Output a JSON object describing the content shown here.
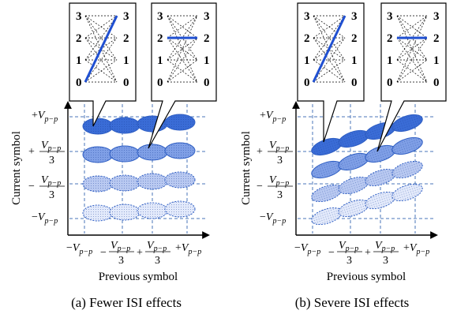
{
  "panels": [
    {
      "id": "a",
      "caption": "(a)  Fewer ISI effects",
      "y_axis_label": "Current symbol",
      "x_axis_label": "Previous symbol",
      "y_ticks": [
        {
          "sign": "+",
          "main": "V",
          "sub": "p−p",
          "frac": false
        },
        {
          "sign": "+",
          "main": "V",
          "sub": "p−p",
          "frac": true,
          "den": "3"
        },
        {
          "sign": "−",
          "main": "V",
          "sub": "p−p",
          "frac": true,
          "den": "3"
        },
        {
          "sign": "−",
          "main": "V",
          "sub": "p−p",
          "frac": false
        }
      ],
      "x_ticks": [
        {
          "sign": "−",
          "main": "V",
          "sub": "p−p",
          "frac": false
        },
        {
          "sign": "−",
          "main": "V",
          "sub": "p−p",
          "frac": true,
          "den": "3"
        },
        {
          "sign": "+",
          "main": "V",
          "sub": "p−p",
          "frac": true,
          "den": "3"
        },
        {
          "sign": "+",
          "main": "V",
          "sub": "p−p",
          "frac": false
        }
      ],
      "callout_left": {
        "levels": [
          "3",
          "2",
          "1",
          "0"
        ],
        "highlight": "0→3"
      },
      "callout_right": {
        "levels": [
          "3",
          "2",
          "1",
          "0"
        ],
        "highlight": "2→2"
      }
    },
    {
      "id": "b",
      "caption": "(b)  Severe ISI effects",
      "y_axis_label": "Current symbol",
      "x_axis_label": "Previous symbol",
      "y_ticks": [
        {
          "sign": "+",
          "main": "V",
          "sub": "p−p",
          "frac": false
        },
        {
          "sign": "+",
          "main": "V",
          "sub": "p−p",
          "frac": true,
          "den": "3"
        },
        {
          "sign": "−",
          "main": "V",
          "sub": "p−p",
          "frac": true,
          "den": "3"
        },
        {
          "sign": "−",
          "main": "V",
          "sub": "p−p",
          "frac": false
        }
      ],
      "x_ticks": [
        {
          "sign": "−",
          "main": "V",
          "sub": "p−p",
          "frac": false
        },
        {
          "sign": "−",
          "main": "V",
          "sub": "p−p",
          "frac": true,
          "den": "3"
        },
        {
          "sign": "+",
          "main": "V",
          "sub": "p−p",
          "frac": true,
          "den": "3"
        },
        {
          "sign": "+",
          "main": "V",
          "sub": "p−p",
          "frac": false
        }
      ],
      "callout_left": {
        "levels": [
          "3",
          "2",
          "1",
          "0"
        ],
        "highlight": "0→3"
      },
      "callout_right": {
        "levels": [
          "3",
          "2",
          "1",
          "0"
        ],
        "highlight": "2→2"
      }
    }
  ],
  "colors": {
    "highlight_line": "#1f4fd1",
    "grid": "#4a74b8",
    "ellipse_row_top": "#3a6cd6",
    "ellipse_row_2": "#7f9fe6",
    "ellipse_row_3": "#b9c9f1",
    "ellipse_row_4": "#e3eafb",
    "ellipse_stroke": "#2f5fc4"
  }
}
